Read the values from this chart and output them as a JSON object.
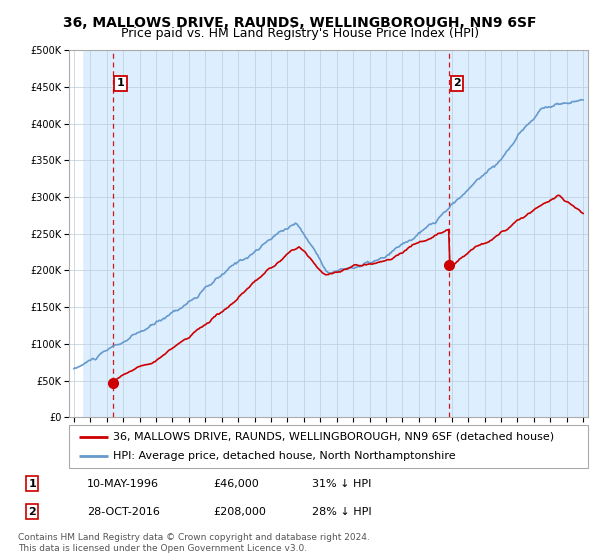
{
  "title": "36, MALLOWS DRIVE, RAUNDS, WELLINGBOROUGH, NN9 6SF",
  "subtitle": "Price paid vs. HM Land Registry's House Price Index (HPI)",
  "ylim": [
    0,
    500000
  ],
  "yticks": [
    0,
    50000,
    100000,
    150000,
    200000,
    250000,
    300000,
    350000,
    400000,
    450000,
    500000
  ],
  "ytick_labels": [
    "£0",
    "£50K",
    "£100K",
    "£150K",
    "£200K",
    "£250K",
    "£300K",
    "£350K",
    "£400K",
    "£450K",
    "£500K"
  ],
  "xlim_start": 1993.7,
  "xlim_end": 2025.3,
  "marker1_x": 1996.36,
  "marker1_y": 46000,
  "marker2_x": 2016.83,
  "marker2_y": 208000,
  "dashed_line1_x": 1996.36,
  "dashed_line2_x": 2016.83,
  "legend_line1": "36, MALLOWS DRIVE, RAUNDS, WELLINGBOROUGH, NN9 6SF (detached house)",
  "legend_line2": "HPI: Average price, detached house, North Northamptonshire",
  "table_row1": [
    "1",
    "10-MAY-1996",
    "£46,000",
    "31% ↓ HPI"
  ],
  "table_row2": [
    "2",
    "28-OCT-2016",
    "£208,000",
    "28% ↓ HPI"
  ],
  "copyright_text": "Contains HM Land Registry data © Crown copyright and database right 2024.\nThis data is licensed under the Open Government Licence v3.0.",
  "red_color": "#cc0000",
  "blue_color": "#6699cc",
  "bg_color": "#ddeeff",
  "grid_color": "#bbccdd",
  "title_fontsize": 10,
  "subtitle_fontsize": 9,
  "tick_fontsize": 7,
  "legend_fontsize": 8
}
